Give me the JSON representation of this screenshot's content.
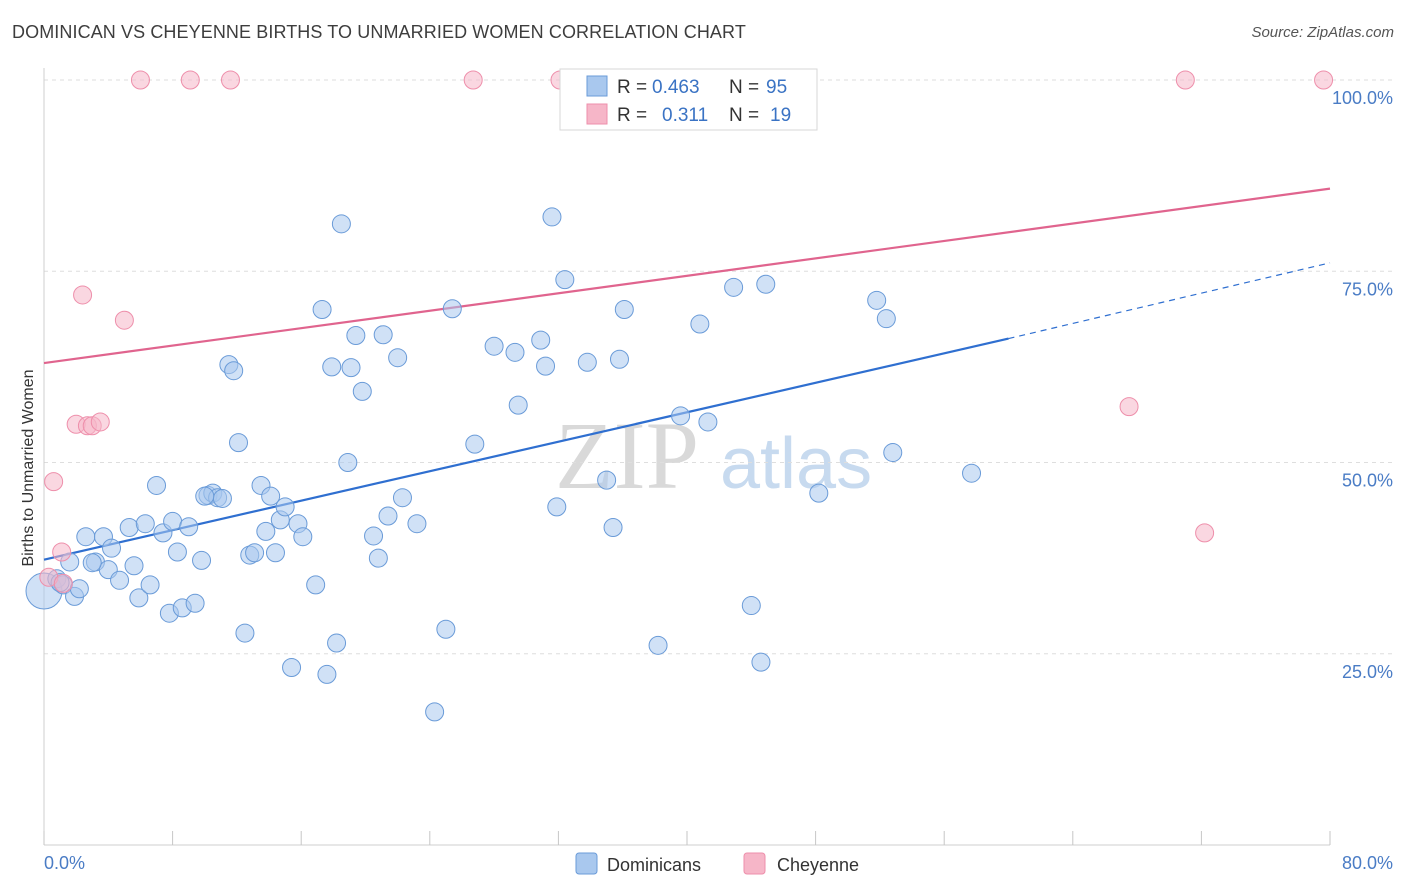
{
  "header": {
    "title": "DOMINICAN VS CHEYENNE BIRTHS TO UNMARRIED WOMEN CORRELATION CHART",
    "source": "Source: ZipAtlas.com"
  },
  "watermark": {
    "part1": "ZIP",
    "part2": "atlas"
  },
  "legend": {
    "r_label": "R =",
    "n_label": "N =",
    "rows": [
      {
        "name": "Dominicans",
        "r": "0.463",
        "n": "95",
        "color": "#a9c8ee"
      },
      {
        "name": "Cheyenne",
        "r": "0.311",
        "n": "19",
        "color": "#f6b6c8"
      }
    ]
  },
  "chart_data": {
    "type": "scatter",
    "title": "DOMINICAN VS CHEYENNE BIRTHS TO UNMARRIED WOMEN CORRELATION CHART",
    "xlabel": "",
    "ylabel": "Births to Unmarried Women",
    "xlim": [
      0,
      80
    ],
    "ylim": [
      0,
      102
    ],
    "x_tick_labels": [
      "0.0%",
      "80.0%"
    ],
    "y_ticks": [
      25,
      50,
      75,
      100
    ],
    "y_tick_labels": [
      "25.0%",
      "50.0%",
      "75.0%",
      "100.0%"
    ],
    "grid": true,
    "series": [
      {
        "name": "Dominicans",
        "color": "#6a9bd8",
        "fill": "#a9c8ee",
        "trend": {
          "x0": 0,
          "y0": 37.3,
          "x1": 60,
          "y1": 66.2,
          "dash_x1": 80,
          "dash_y1": 76.1,
          "color": "#2f6fd0"
        },
        "points": [
          [
            0.0,
            33.2
          ],
          [
            0.8,
            34.8
          ],
          [
            1.2,
            34.0
          ],
          [
            1.6,
            37.0
          ],
          [
            1.9,
            32.5
          ],
          [
            2.2,
            33.5
          ],
          [
            2.6,
            40.3
          ],
          [
            3.2,
            37.0
          ],
          [
            3.7,
            40.3
          ],
          [
            4.0,
            36.0
          ],
          [
            4.2,
            38.8
          ],
          [
            4.7,
            34.6
          ],
          [
            5.3,
            41.5
          ],
          [
            5.6,
            36.5
          ],
          [
            5.9,
            32.3
          ],
          [
            6.3,
            42.0
          ],
          [
            6.6,
            34.0
          ],
          [
            7.0,
            47.0
          ],
          [
            7.4,
            40.8
          ],
          [
            7.8,
            30.3
          ],
          [
            8.0,
            42.3
          ],
          [
            8.3,
            38.3
          ],
          [
            8.6,
            31.0
          ],
          [
            9.0,
            41.6
          ],
          [
            9.4,
            31.6
          ],
          [
            9.8,
            37.2
          ],
          [
            10.2,
            45.7
          ],
          [
            10.5,
            46.0
          ],
          [
            10.8,
            45.4
          ],
          [
            11.1,
            45.3
          ],
          [
            11.5,
            62.8
          ],
          [
            11.8,
            62.0
          ],
          [
            12.1,
            52.6
          ],
          [
            12.5,
            27.7
          ],
          [
            12.8,
            37.9
          ],
          [
            13.1,
            38.2
          ],
          [
            13.5,
            47.0
          ],
          [
            13.8,
            41.0
          ],
          [
            14.1,
            45.6
          ],
          [
            14.4,
            38.2
          ],
          [
            14.7,
            42.5
          ],
          [
            15.0,
            44.2
          ],
          [
            15.4,
            23.2
          ],
          [
            15.8,
            42.0
          ],
          [
            16.1,
            40.3
          ],
          [
            16.9,
            34.0
          ],
          [
            17.3,
            70.0
          ],
          [
            17.6,
            22.3
          ],
          [
            17.9,
            62.5
          ],
          [
            18.2,
            26.4
          ],
          [
            18.5,
            81.2
          ],
          [
            18.9,
            50.0
          ],
          [
            19.1,
            62.4
          ],
          [
            19.4,
            66.6
          ],
          [
            19.8,
            59.3
          ],
          [
            20.5,
            40.4
          ],
          [
            20.8,
            37.5
          ],
          [
            21.1,
            66.7
          ],
          [
            21.4,
            43.0
          ],
          [
            22.0,
            63.7
          ],
          [
            22.3,
            45.4
          ],
          [
            23.2,
            42.0
          ],
          [
            24.3,
            17.4
          ],
          [
            25.0,
            28.2
          ],
          [
            25.4,
            70.1
          ],
          [
            26.8,
            52.4
          ],
          [
            28.0,
            65.2
          ],
          [
            29.3,
            64.4
          ],
          [
            29.5,
            57.5
          ],
          [
            30.9,
            66.0
          ],
          [
            31.2,
            62.6
          ],
          [
            31.6,
            82.1
          ],
          [
            31.9,
            44.2
          ],
          [
            32.4,
            73.9
          ],
          [
            33.8,
            63.1
          ],
          [
            35.0,
            47.7
          ],
          [
            35.4,
            41.5
          ],
          [
            35.8,
            63.5
          ],
          [
            36.1,
            70.0
          ],
          [
            38.2,
            26.1
          ],
          [
            39.6,
            56.1
          ],
          [
            40.8,
            68.1
          ],
          [
            41.3,
            55.3
          ],
          [
            42.9,
            72.9
          ],
          [
            44.0,
            31.3
          ],
          [
            44.6,
            23.9
          ],
          [
            44.9,
            73.3
          ],
          [
            48.2,
            46.0
          ],
          [
            51.8,
            71.2
          ],
          [
            52.4,
            68.8
          ],
          [
            52.8,
            51.3
          ],
          [
            57.7,
            48.6
          ],
          [
            1.0,
            34.3
          ],
          [
            3.0,
            36.9
          ],
          [
            10.0,
            45.6
          ]
        ]
      },
      {
        "name": "Cheyenne",
        "color": "#ee8fab",
        "fill": "#f6b6c8",
        "trend": {
          "x0": 0,
          "y0": 63.0,
          "x1": 80,
          "y1": 85.8,
          "color": "#e0648e"
        },
        "points": [
          [
            6.0,
            100.0
          ],
          [
            9.1,
            100.0
          ],
          [
            11.6,
            100.0
          ],
          [
            26.7,
            100.0
          ],
          [
            32.1,
            100.0
          ],
          [
            71.0,
            100.0
          ],
          [
            79.6,
            100.0
          ],
          [
            2.4,
            71.9
          ],
          [
            5.0,
            68.6
          ],
          [
            2.0,
            55.0
          ],
          [
            2.7,
            54.8
          ],
          [
            3.0,
            54.8
          ],
          [
            3.5,
            55.3
          ],
          [
            0.6,
            47.5
          ],
          [
            1.1,
            38.3
          ],
          [
            0.3,
            35.0
          ],
          [
            1.2,
            34.2
          ],
          [
            67.5,
            57.3
          ],
          [
            72.2,
            40.8
          ]
        ]
      }
    ]
  }
}
